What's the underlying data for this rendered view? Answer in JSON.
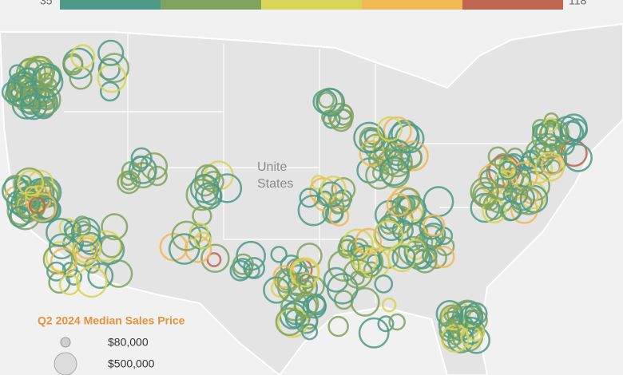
{
  "color_legend": {
    "min": "35",
    "max": "118",
    "colors": [
      "#4e9a86",
      "#7fa35e",
      "#d8d455",
      "#f0b955",
      "#c0654f"
    ]
  },
  "map": {
    "label_lines": [
      "Unite",
      "States"
    ]
  },
  "size_legend": {
    "title": "Q2 2024 Median Sales Price",
    "items": [
      "$80,000",
      "$500,000"
    ]
  }
}
